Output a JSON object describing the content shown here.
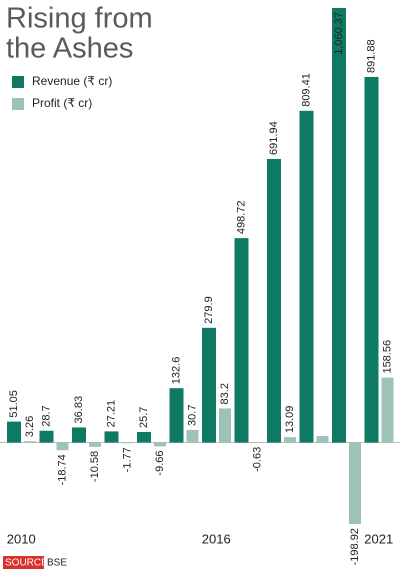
{
  "chart_data": {
    "type": "bar",
    "title_lines": [
      "Rising from",
      "the Ashes"
    ],
    "categories": [
      "2010",
      null,
      null,
      null,
      null,
      null,
      "2016",
      null,
      null,
      null,
      null,
      "2021"
    ],
    "series": [
      {
        "name": "Revenue (₹ cr)",
        "color": "#0f7a63",
        "values": [
          51.05,
          28.7,
          36.83,
          27.21,
          25.7,
          132.6,
          279.9,
          498.72,
          691.94,
          809.41,
          1060.37,
          891.88
        ],
        "value_labels": [
          "51.05",
          "28.7",
          "36.83",
          "27.21",
          "25.7",
          "132.6",
          "279.9",
          "498.72",
          "691.94",
          "809.41",
          "1,060.37",
          "891.88"
        ]
      },
      {
        "name": "Profit (₹ cr)",
        "color": "#9dc3b8",
        "values": [
          3.26,
          -18.74,
          -10.58,
          -1.77,
          -9.66,
          30.7,
          83.2,
          -0.63,
          13.09,
          16,
          -198.92,
          158.56
        ],
        "value_labels": [
          "3.26",
          "-18.74",
          "-10.58",
          "-1.77",
          "-9.66",
          "30.7",
          "83.2",
          "-0.63",
          "13.09",
          null,
          "-198.92",
          "158.56"
        ]
      }
    ],
    "ylim": [
      -250,
      1070
    ],
    "source_label": "SOURCE",
    "source": "BSE"
  }
}
